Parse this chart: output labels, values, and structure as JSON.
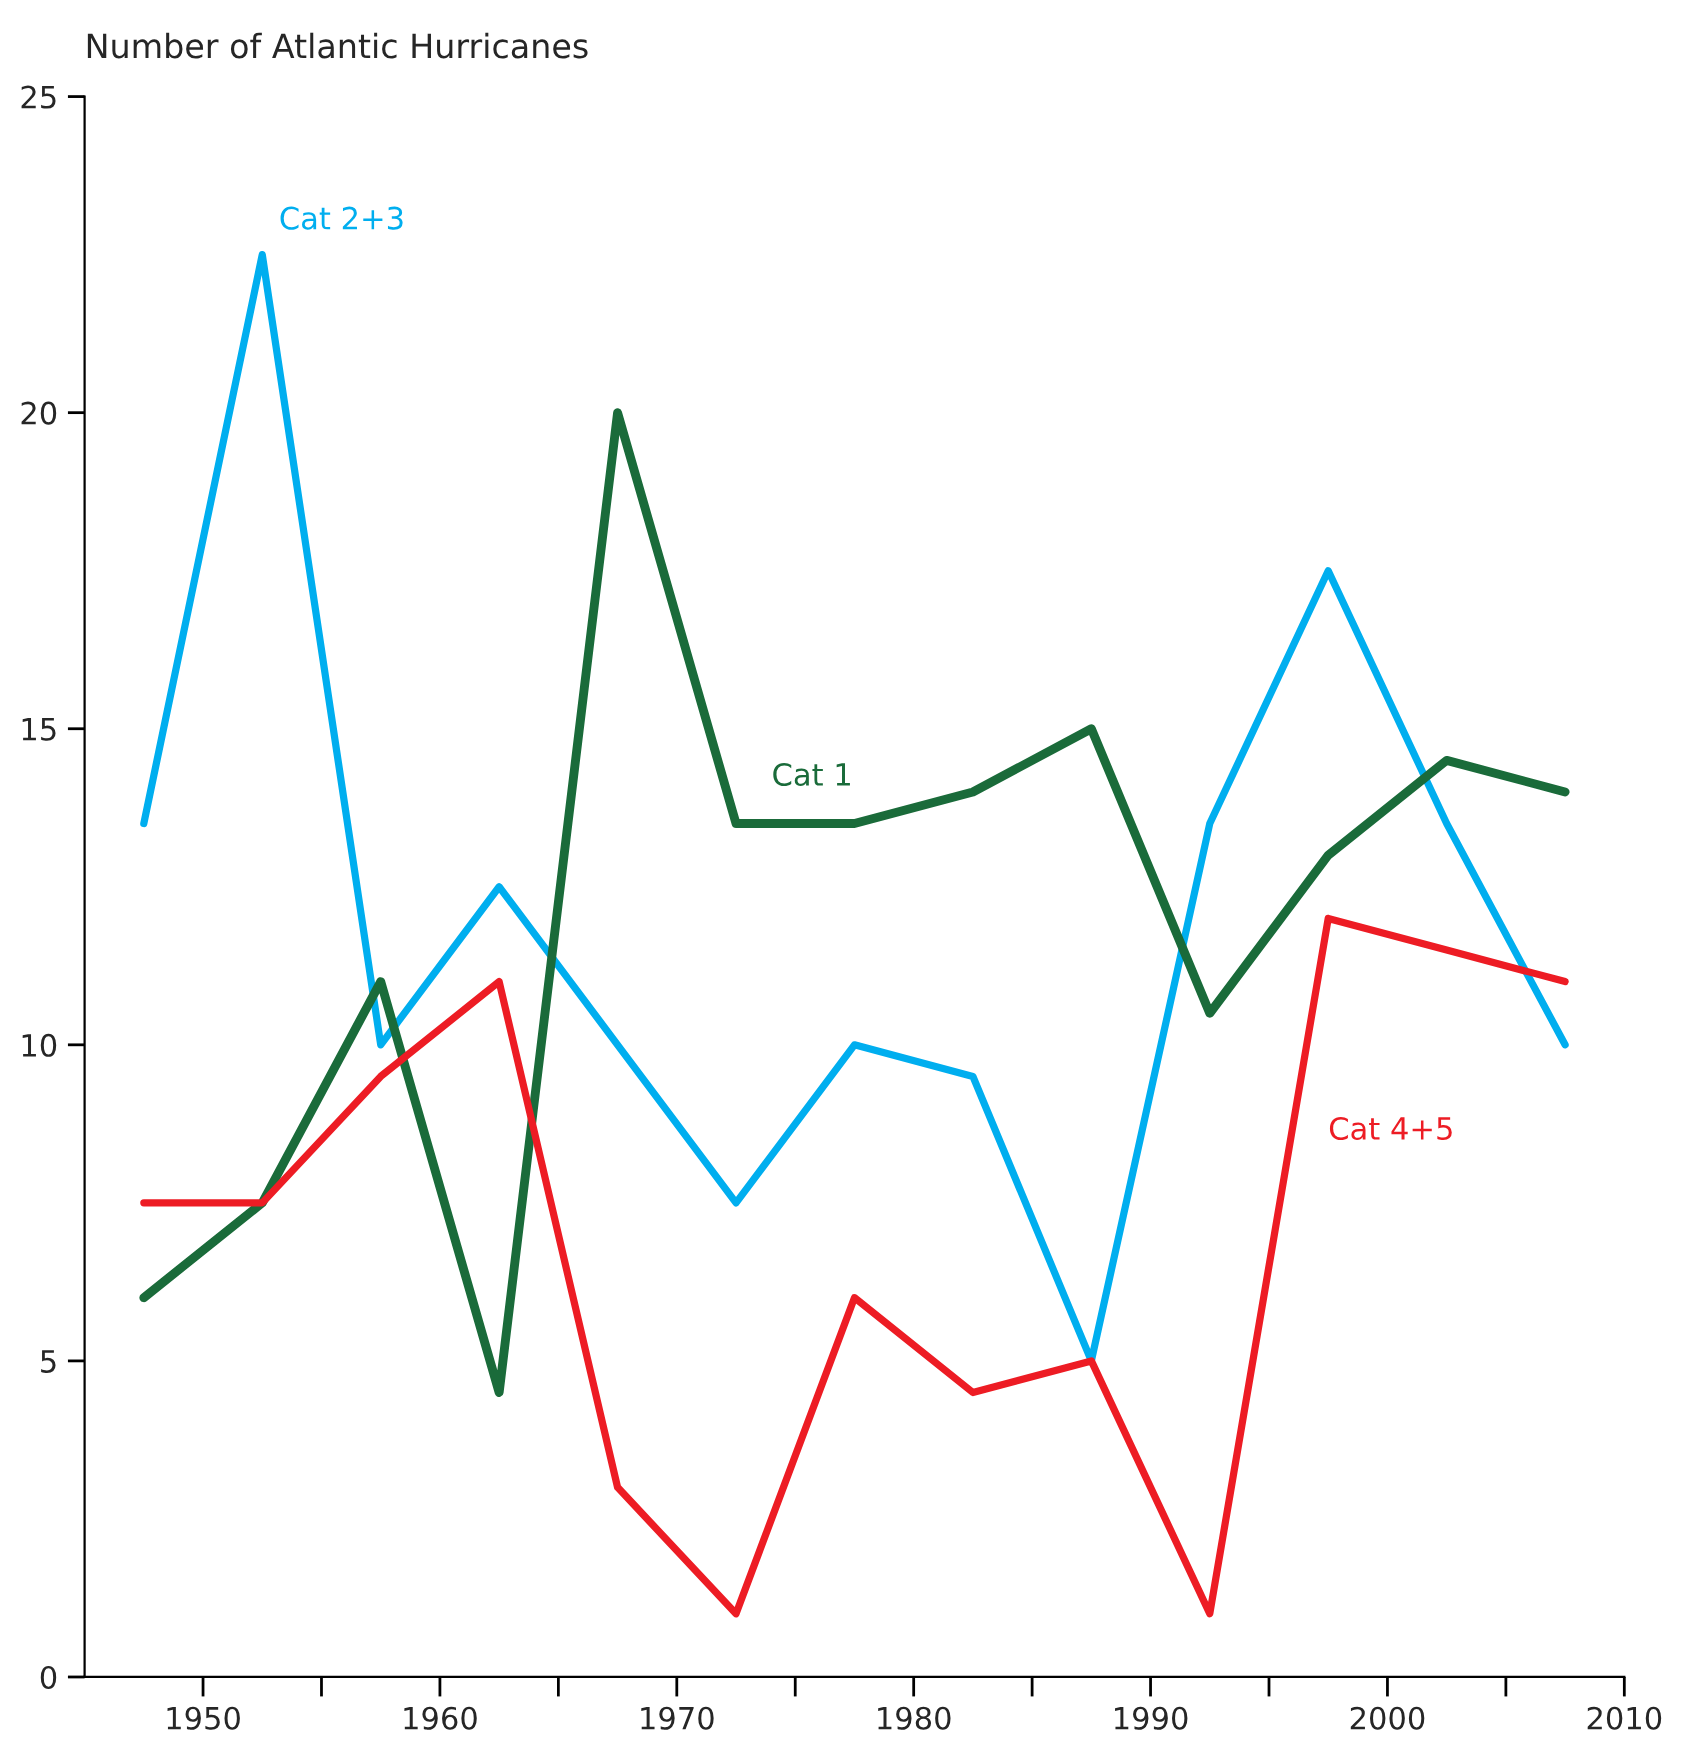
{
  "chart_data": {
    "type": "line",
    "ylabel": "Number of Atlantic Hurricanes",
    "x": [
      1947.5,
      1952.5,
      1957.5,
      1962.5,
      1967.5,
      1972.5,
      1977.5,
      1982.5,
      1987.5,
      1992.5,
      1997.5,
      2002.5,
      2007.5
    ],
    "series": [
      {
        "name": "Cat 2+3",
        "color": "#00aeef",
        "values": [
          13.5,
          22.5,
          10,
          12.5,
          10,
          7.5,
          10,
          9.5,
          5,
          13.5,
          17.5,
          13.5,
          10
        ]
      },
      {
        "name": "Cat 1",
        "color": "#1a6b3a",
        "values": [
          6,
          7.5,
          11,
          4.5,
          20,
          13.5,
          13.5,
          14,
          15,
          10.5,
          13,
          14.5,
          14
        ]
      },
      {
        "name": "Cat 4+5",
        "color": "#ed1c24",
        "values": [
          7.5,
          7.5,
          9.5,
          11,
          3,
          1,
          6,
          4.5,
          5,
          1,
          12,
          11.5,
          11
        ]
      }
    ],
    "xlim": [
      1945,
      2010
    ],
    "xticks": [
      1950,
      {
        "value": 1955,
        "label": null
      },
      1960,
      {
        "value": 1965,
        "label": null
      },
      1970,
      {
        "value": 1975,
        "label": null
      },
      1980,
      {
        "value": 1985,
        "label": null
      },
      1990,
      {
        "value": 1995,
        "label": null
      },
      2000,
      {
        "value": 2005,
        "label": null
      },
      2010
    ],
    "ylim": [
      0,
      25
    ],
    "yticks": [
      0,
      5,
      10,
      15,
      20,
      25
    ],
    "grid": false,
    "legend": false,
    "marker": "none",
    "line_style": "solid"
  }
}
